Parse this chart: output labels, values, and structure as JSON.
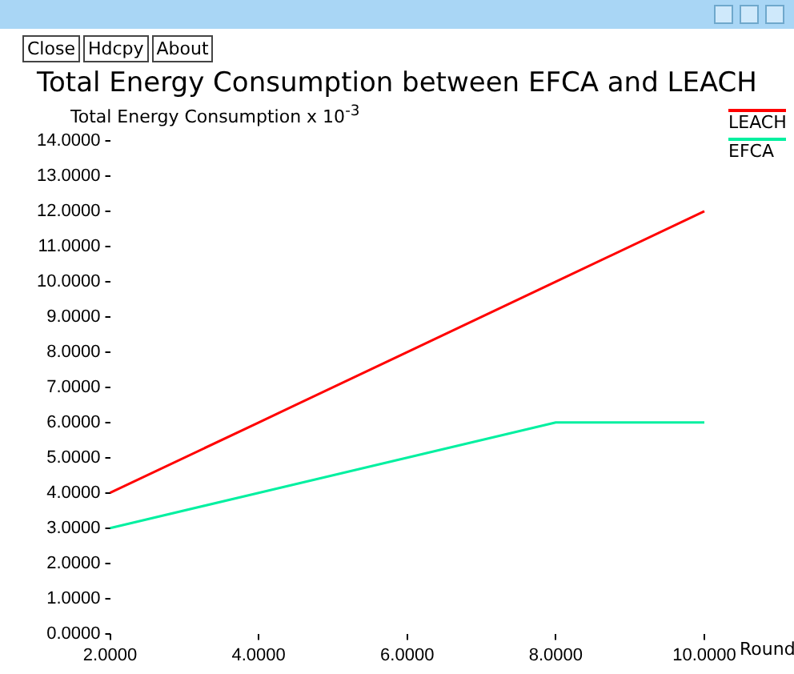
{
  "chart_data": {
    "type": "line",
    "title": "Total Energy Consumption between EFCA and LEACH",
    "ylabel": "Total Energy Consumption x 10$^{-3}$",
    "xlabel": "Round",
    "annotations": [
      "Close",
      "Hdcpy",
      "About"
    ],
    "x": [
      2,
      4,
      6,
      8,
      10
    ],
    "series": [
      {
        "name": "LEACH",
        "color": "#ff0000",
        "values": [
          4,
          6,
          8,
          10,
          12
        ]
      },
      {
        "name": "EFCA",
        "color": "#00f0a0",
        "values": [
          3,
          4,
          5,
          6,
          6
        ]
      }
    ],
    "xlim": [
      2,
      10
    ],
    "xticks": [
      {
        "value": 2,
        "label": "2.0000"
      },
      {
        "value": 4,
        "label": "4.0000"
      },
      {
        "value": 6,
        "label": "6.0000"
      },
      {
        "value": 8,
        "label": "8.0000"
      },
      {
        "value": 10,
        "label": "10.0000"
      }
    ],
    "ylim": [
      0,
      14
    ],
    "yticks": [
      {
        "value": 0,
        "label": "0.0000"
      },
      {
        "value": 1,
        "label": "1.0000"
      },
      {
        "value": 2,
        "label": "2.0000"
      },
      {
        "value": 3,
        "label": "3.0000"
      },
      {
        "value": 4,
        "label": "4.0000"
      },
      {
        "value": 5,
        "label": "5.0000"
      },
      {
        "value": 6,
        "label": "6.0000"
      },
      {
        "value": 7,
        "label": "7.0000"
      },
      {
        "value": 8,
        "label": "8.0000"
      },
      {
        "value": 9,
        "label": "9.0000"
      },
      {
        "value": 10,
        "label": "10.0000"
      },
      {
        "value": 11,
        "label": "11.0000"
      },
      {
        "value": 12,
        "label": "12.0000"
      },
      {
        "value": 13,
        "label": "13.0000"
      },
      {
        "value": 14,
        "label": "14.0000"
      }
    ],
    "grid": false,
    "legend": "top right",
    "marker": "none",
    "line_style": "solid"
  }
}
